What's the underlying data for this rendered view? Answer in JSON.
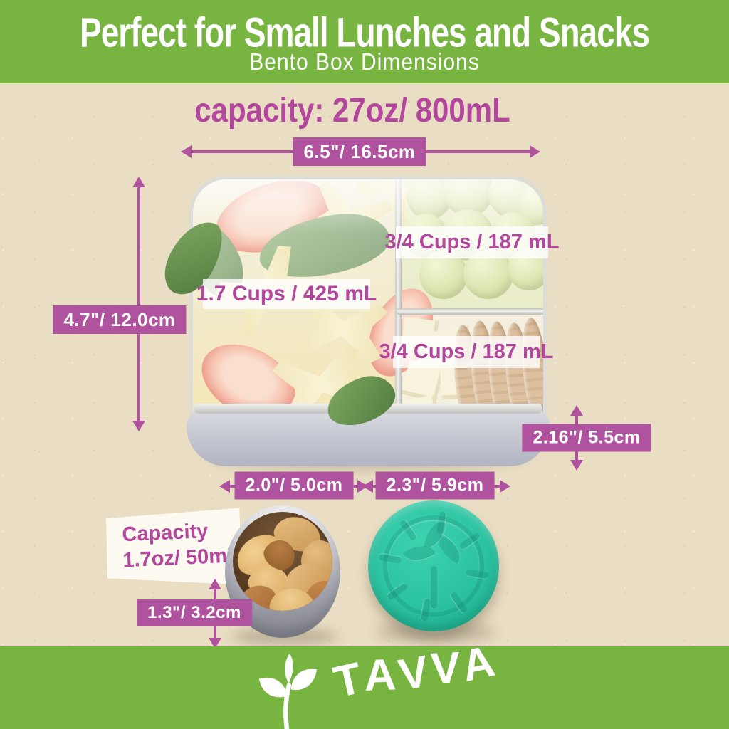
{
  "header": {
    "title": "Perfect for Small Lunches and Snacks",
    "subtitle": "Bento Box Dimensions"
  },
  "capacity_heading": "capacity: 27oz/ 800mL",
  "dimensions": {
    "box_width": "6.5\"/ 16.5cm",
    "box_height": "4.7\"/ 12.0cm",
    "box_depth": "2.16\"/ 5.5cm",
    "snack_cup_width": "2.0\"/ 5.0cm",
    "lid_width": "2.3\"/ 5.9cm",
    "snack_cup_height": "1.3\"/ 3.2cm"
  },
  "compartments": {
    "main": "1.7 Cups / 425 mL",
    "top_right": "3/4 Cups / 187 mL",
    "bottom_right": "3/4 Cups / 187 mL"
  },
  "snack_cup": {
    "capacity_title": "Capacity",
    "capacity_value": "1.7oz/ 50mL"
  },
  "brand": {
    "name": "TAVVA",
    "logo_icon": "sprout-leaf-icon"
  },
  "colors": {
    "banner_green": "#77B440",
    "badge_magenta": "#B0539E",
    "text_magenta": "#B3469D",
    "lid_teal": "#2BC2A0",
    "background_tan": "#E9DEC4"
  }
}
